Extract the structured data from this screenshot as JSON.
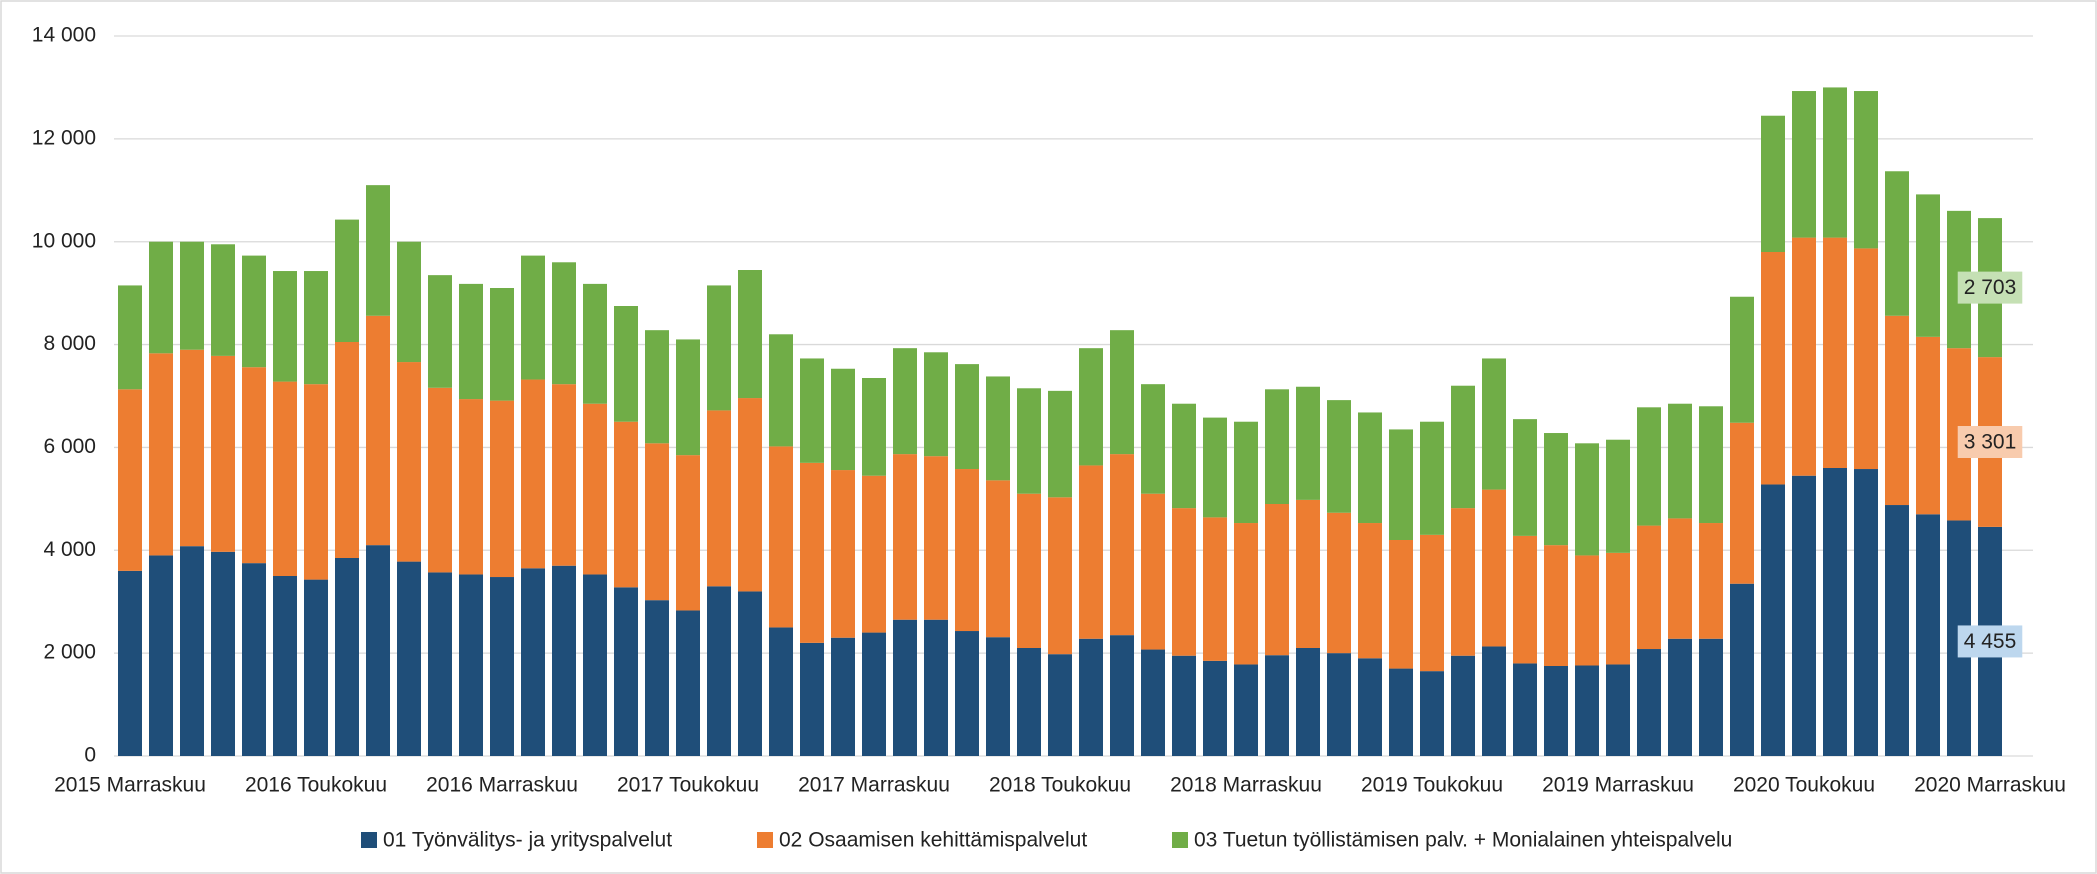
{
  "chart_data": {
    "type": "stacked_bar",
    "categories": [
      "2015 Marraskuu",
      null,
      null,
      null,
      null,
      null,
      "2016 Toukokuu",
      null,
      null,
      null,
      null,
      null,
      "2016 Marraskuu",
      null,
      null,
      null,
      null,
      null,
      "2017 Toukokuu",
      null,
      null,
      null,
      null,
      null,
      "2017 Marraskuu",
      null,
      null,
      null,
      null,
      null,
      "2018 Toukokuu",
      null,
      null,
      null,
      null,
      null,
      "2018 Marraskuu",
      null,
      null,
      null,
      null,
      null,
      "2019 Toukokuu",
      null,
      null,
      null,
      null,
      null,
      "2019 Marraskuu",
      null,
      null,
      null,
      null,
      null,
      "2020 Toukokuu",
      null,
      null,
      null,
      null,
      null,
      "2020 Marraskuu"
    ],
    "series": [
      {
        "name": "01 Työnvälitys- ja yrityspalvelut",
        "color": "#1f4e79",
        "values": [
          3600,
          3900,
          4080,
          3970,
          3750,
          3500,
          3430,
          3850,
          4100,
          3780,
          3570,
          3530,
          3480,
          3650,
          3700,
          3530,
          3280,
          3030,
          2830,
          3300,
          3200,
          2500,
          2200,
          2300,
          2400,
          2650,
          2650,
          2430,
          2310,
          2100,
          1980,
          2280,
          2350,
          2070,
          1950,
          1850,
          1780,
          1960,
          2100,
          2000,
          1900,
          1700,
          1650,
          1950,
          2130,
          1800,
          1750,
          1760,
          1780,
          2080,
          2280,
          2280,
          3350,
          5280,
          5450,
          5600,
          5580,
          4880,
          4700,
          4580,
          4455
        ],
        "value_labels": [
          null,
          null,
          null,
          null,
          null,
          null,
          null,
          null,
          null,
          null,
          null,
          null,
          null,
          null,
          null,
          null,
          null,
          null,
          null,
          null,
          null,
          null,
          null,
          null,
          null,
          null,
          null,
          null,
          null,
          null,
          null,
          null,
          null,
          null,
          null,
          null,
          null,
          null,
          null,
          null,
          null,
          null,
          null,
          null,
          null,
          null,
          null,
          null,
          null,
          null,
          null,
          null,
          null,
          null,
          null,
          null,
          null,
          null,
          null,
          null,
          "4 455"
        ],
        "label_color": "#bdd7ee"
      },
      {
        "name": "02 Osaamisen kehittämispalvelut",
        "color": "#ed7d31",
        "values": [
          3530,
          3930,
          3820,
          3810,
          3810,
          3780,
          3800,
          4200,
          4460,
          3880,
          3590,
          3410,
          3430,
          3670,
          3530,
          3320,
          3220,
          3050,
          3020,
          3420,
          3760,
          3520,
          3500,
          3260,
          3050,
          3220,
          3180,
          3150,
          3050,
          3000,
          3050,
          3370,
          3520,
          3030,
          2870,
          2790,
          2750,
          2940,
          2880,
          2730,
          2630,
          2500,
          2650,
          2870,
          3050,
          2480,
          2350,
          2140,
          2170,
          2400,
          2340,
          2250,
          3130,
          4520,
          4630,
          4480,
          4290,
          3680,
          3450,
          3350,
          3301
        ],
        "value_labels": [
          null,
          null,
          null,
          null,
          null,
          null,
          null,
          null,
          null,
          null,
          null,
          null,
          null,
          null,
          null,
          null,
          null,
          null,
          null,
          null,
          null,
          null,
          null,
          null,
          null,
          null,
          null,
          null,
          null,
          null,
          null,
          null,
          null,
          null,
          null,
          null,
          null,
          null,
          null,
          null,
          null,
          null,
          null,
          null,
          null,
          null,
          null,
          null,
          null,
          null,
          null,
          null,
          null,
          null,
          null,
          null,
          null,
          null,
          null,
          null,
          "3 301"
        ],
        "label_color": "#f8cbad"
      },
      {
        "name": "03 Tuetun työllistämisen palv. + Monialainen yhteispalvelu",
        "color": "#70ad47",
        "values": [
          2020,
          2170,
          2100,
          2170,
          2170,
          2150,
          2200,
          2380,
          2540,
          2340,
          2190,
          2240,
          2190,
          2410,
          2370,
          2330,
          2250,
          2200,
          2250,
          2430,
          2490,
          2180,
          2030,
          1970,
          1900,
          2060,
          2020,
          2040,
          2020,
          2050,
          2070,
          2280,
          2410,
          2130,
          2030,
          1940,
          1970,
          2230,
          2200,
          2190,
          2150,
          2150,
          2200,
          2380,
          2550,
          2270,
          2180,
          2180,
          2200,
          2300,
          2230,
          2270,
          2450,
          2650,
          2850,
          2920,
          3060,
          2810,
          2770,
          2670,
          2703
        ],
        "value_labels": [
          null,
          null,
          null,
          null,
          null,
          null,
          null,
          null,
          null,
          null,
          null,
          null,
          null,
          null,
          null,
          null,
          null,
          null,
          null,
          null,
          null,
          null,
          null,
          null,
          null,
          null,
          null,
          null,
          null,
          null,
          null,
          null,
          null,
          null,
          null,
          null,
          null,
          null,
          null,
          null,
          null,
          null,
          null,
          null,
          null,
          null,
          null,
          null,
          null,
          null,
          null,
          null,
          null,
          null,
          null,
          null,
          null,
          null,
          null,
          null,
          "2 703"
        ],
        "label_color": "#c5e0b4"
      }
    ],
    "ylim": [
      0,
      14000
    ],
    "yticks": [
      0,
      {
        "value": 2000,
        "label": "2 000"
      },
      {
        "value": 4000,
        "label": "4 000"
      },
      {
        "value": 6000,
        "label": "6 000"
      },
      {
        "value": 8000,
        "label": "8 000"
      },
      {
        "value": 10000,
        "label": "10 000"
      },
      {
        "value": 12000,
        "label": "12 000"
      },
      {
        "value": 14000,
        "label": "14 000"
      }
    ],
    "grid": true,
    "legend": "bottom"
  }
}
